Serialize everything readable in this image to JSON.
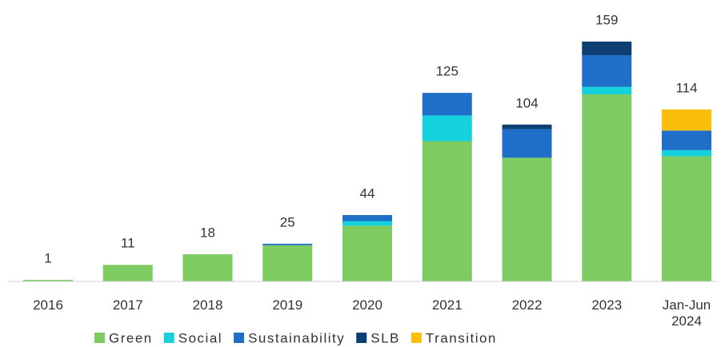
{
  "chart_data": {
    "type": "stacked_bar",
    "categories": [
      "2016",
      "2017",
      "2018",
      "2019",
      "2020",
      "2021",
      "2022",
      "2023",
      "Jan-Jun 2024"
    ],
    "totals": [
      1,
      11,
      18,
      25,
      44,
      125,
      104,
      159,
      114
    ],
    "series": [
      {
        "name": "Green",
        "color": "#7ecb62",
        "values": [
          1,
          11,
          18,
          24,
          37,
          93,
          82,
          124,
          83
        ]
      },
      {
        "name": "Social",
        "color": "#14d1dc",
        "values": [
          null,
          null,
          null,
          null,
          3,
          17,
          null,
          5,
          4
        ]
      },
      {
        "name": "Sustainability",
        "color": "#1f6fc8",
        "values": [
          null,
          null,
          null,
          1,
          4,
          15,
          19,
          21,
          13
        ]
      },
      {
        "name": "SLB",
        "color": "#0d3f73",
        "values": [
          null,
          null,
          null,
          null,
          null,
          null,
          3,
          9,
          null
        ]
      },
      {
        "name": "Transition",
        "color": "#fbbf0a",
        "values": [
          null,
          null,
          null,
          null,
          null,
          null,
          null,
          null,
          14
        ]
      }
    ],
    "ylim": [
      0,
      159
    ]
  }
}
